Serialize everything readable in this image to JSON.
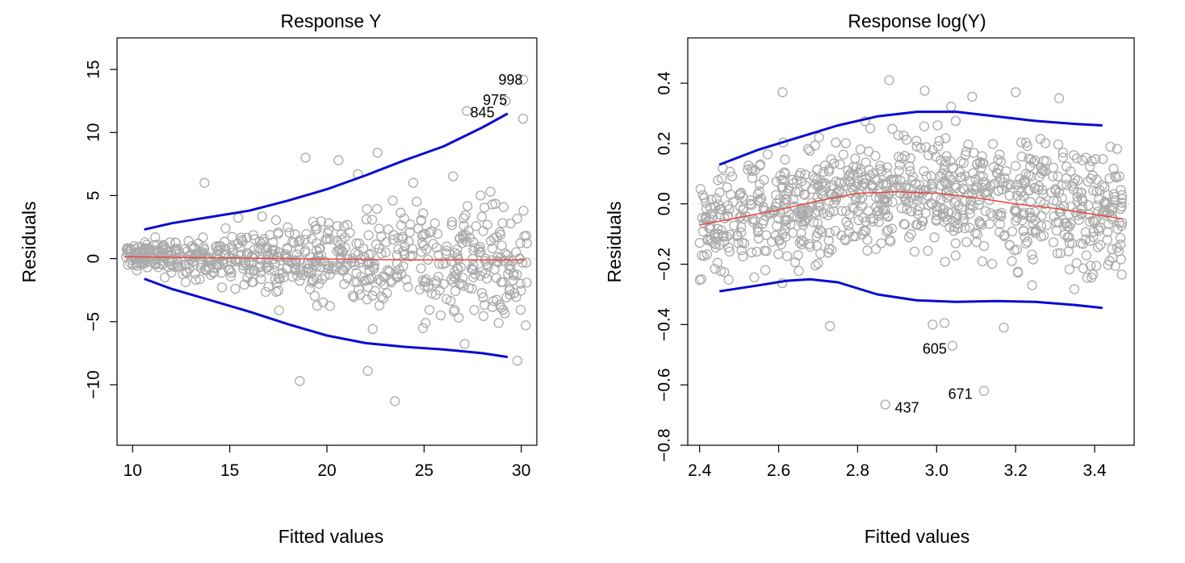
{
  "chart_data": [
    {
      "type": "scatter",
      "title": "Response Y",
      "xlabel": "Fitted values",
      "ylabel": "Residuals",
      "xlim": [
        9.2,
        30.8
      ],
      "ylim": [
        -14.8,
        17.5
      ],
      "xticks": [
        10,
        15,
        20,
        25,
        30
      ],
      "xtick_labels": [
        "10",
        "15",
        "20",
        "25",
        "30"
      ],
      "yticks": [
        -10,
        -5,
        0,
        5,
        10,
        15
      ],
      "ytick_labels": [
        "−10",
        "−5",
        "0",
        "5",
        "10",
        "15"
      ],
      "zero_line": 0,
      "point_color": "#aaaaaa",
      "envelope_color": "#0a0ad2",
      "smoother_color": "#e8453c",
      "upper_envelope": {
        "x": [
          10.6,
          12,
          14,
          16,
          18,
          20,
          22,
          24,
          26,
          28,
          29.3
        ],
        "y": [
          2.3,
          2.8,
          3.3,
          3.8,
          4.6,
          5.5,
          6.6,
          7.8,
          8.9,
          10.4,
          11.5
        ]
      },
      "lower_envelope": {
        "x": [
          10.6,
          12,
          14,
          16,
          18,
          20,
          22,
          24,
          26,
          28,
          29.3
        ],
        "y": [
          -1.6,
          -2.4,
          -3.3,
          -4.2,
          -5.2,
          -6.1,
          -6.7,
          -7.0,
          -7.2,
          -7.5,
          -7.8
        ]
      },
      "smoother": {
        "x": [
          9.6,
          12,
          15,
          18,
          21,
          24,
          27,
          30.2
        ],
        "y": [
          0.15,
          0.1,
          0.05,
          0.0,
          -0.05,
          -0.1,
          -0.1,
          -0.1
        ]
      },
      "cloud": {
        "n": 700,
        "x_range": [
          9.6,
          30.3
        ],
        "spread": [
          [
            9.6,
            0.7
          ],
          [
            15,
            1.6
          ],
          [
            20,
            2.4
          ],
          [
            25,
            3.2
          ],
          [
            30,
            3.8
          ]
        ],
        "seed": 7
      },
      "outliers": [
        {
          "x": 18.6,
          "y": -9.7
        },
        {
          "x": 23.5,
          "y": -11.3
        },
        {
          "x": 18.9,
          "y": 8.0
        },
        {
          "x": 27.2,
          "y": 11.7
        },
        {
          "x": 29.2,
          "y": 12.5
        },
        {
          "x": 30.1,
          "y": 14.2
        },
        {
          "x": 30.1,
          "y": 11.1
        },
        {
          "x": 22.6,
          "y": 8.4
        },
        {
          "x": 21.6,
          "y": 6.7
        },
        {
          "x": 20.6,
          "y": 7.8
        },
        {
          "x": 13.7,
          "y": 6.0
        },
        {
          "x": 22.1,
          "y": -8.9
        },
        {
          "x": 29.8,
          "y": -8.1
        }
      ],
      "annotations": [
        {
          "text": "998",
          "x": 29.45,
          "y": 14.2
        },
        {
          "text": "975",
          "x": 28.65,
          "y": 12.6
        },
        {
          "text": "845",
          "x": 28.0,
          "y": 11.6
        }
      ]
    },
    {
      "type": "scatter",
      "title": "Response log(Y)",
      "xlabel": "Fitted values",
      "ylabel": "Residuals",
      "xlim": [
        2.37,
        3.5
      ],
      "ylim": [
        -0.8,
        0.55
      ],
      "xticks": [
        2.4,
        2.6,
        2.8,
        3.0,
        3.2,
        3.4
      ],
      "xtick_labels": [
        "2.4",
        "2.6",
        "2.8",
        "3.0",
        "3.2",
        "3.4"
      ],
      "yticks": [
        -0.8,
        -0.6,
        -0.4,
        -0.2,
        0.0,
        0.2,
        0.4
      ],
      "ytick_labels": [
        "−0.8",
        "−0.6",
        "−0.4",
        "−0.2",
        "0.0",
        "0.2",
        "0.4"
      ],
      "zero_line": 0,
      "point_color": "#aaaaaa",
      "envelope_color": "#0a0ad2",
      "smoother_color": "#e8453c",
      "upper_envelope": {
        "x": [
          2.45,
          2.55,
          2.65,
          2.75,
          2.85,
          2.95,
          3.05,
          3.15,
          3.25,
          3.35,
          3.42
        ],
        "y": [
          0.13,
          0.18,
          0.22,
          0.26,
          0.29,
          0.305,
          0.305,
          0.29,
          0.275,
          0.265,
          0.26
        ]
      },
      "lower_envelope": {
        "x": [
          2.45,
          2.55,
          2.62,
          2.68,
          2.75,
          2.85,
          2.95,
          3.05,
          3.15,
          3.25,
          3.35,
          3.42
        ],
        "y": [
          -0.29,
          -0.27,
          -0.255,
          -0.25,
          -0.26,
          -0.3,
          -0.32,
          -0.325,
          -0.322,
          -0.325,
          -0.335,
          -0.345
        ]
      },
      "smoother": {
        "x": [
          2.4,
          2.5,
          2.6,
          2.7,
          2.8,
          2.9,
          3.0,
          3.1,
          3.2,
          3.3,
          3.4,
          3.47
        ],
        "y": [
          -0.07,
          -0.045,
          -0.02,
          0.01,
          0.035,
          0.04,
          0.035,
          0.02,
          0.0,
          -0.015,
          -0.035,
          -0.05
        ]
      },
      "cloud": {
        "n": 900,
        "x_range": [
          2.4,
          3.47
        ],
        "spread": [
          [
            2.4,
            0.13
          ],
          [
            2.9,
            0.14
          ],
          [
            3.47,
            0.14
          ]
        ],
        "seed": 11
      },
      "outliers": [
        {
          "x": 2.88,
          "y": 0.41
        },
        {
          "x": 2.61,
          "y": 0.37
        },
        {
          "x": 2.97,
          "y": 0.375
        },
        {
          "x": 3.2,
          "y": 0.37
        },
        {
          "x": 3.31,
          "y": 0.35
        },
        {
          "x": 3.09,
          "y": 0.355
        },
        {
          "x": 2.73,
          "y": -0.405
        },
        {
          "x": 2.99,
          "y": -0.4
        },
        {
          "x": 3.02,
          "y": -0.395
        },
        {
          "x": 3.17,
          "y": -0.41
        },
        {
          "x": 3.04,
          "y": -0.47
        },
        {
          "x": 2.87,
          "y": -0.665
        },
        {
          "x": 3.12,
          "y": -0.62
        }
      ],
      "annotations": [
        {
          "text": "605",
          "x": 2.995,
          "y": -0.48
        },
        {
          "text": "671",
          "x": 3.06,
          "y": -0.63
        },
        {
          "text": "437",
          "x": 2.925,
          "y": -0.675
        }
      ]
    }
  ]
}
